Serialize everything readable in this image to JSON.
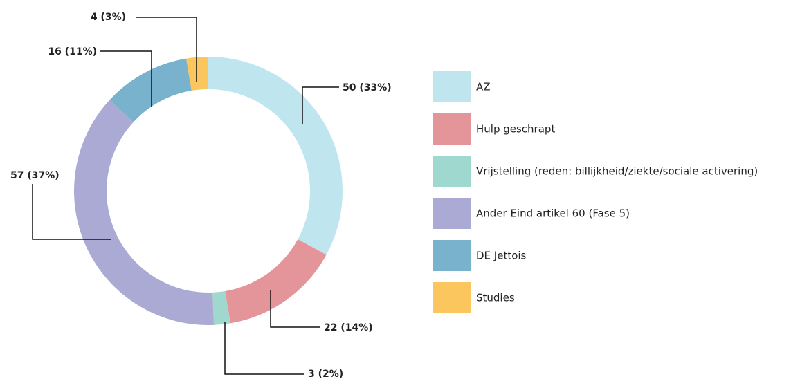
{
  "chart_data": {
    "type": "pie",
    "categories": [
      "AZ",
      "Hulp geschrapt",
      "Vrijstelling (reden: billijkheid/ziekte/sociale activering)",
      "Ander Eind artikel 60 (Fase 5)",
      "DE Jettois",
      "Studies"
    ],
    "values": [
      50,
      22,
      3,
      57,
      16,
      4
    ],
    "value_labels": [
      "50 (33%)",
      "22 (14%)",
      "3 (2%)",
      "57 (37%)",
      "16 (11%)",
      "4 (3%)"
    ],
    "colors": [
      "#bfe5ef",
      "#e4959a",
      "#9fd8cf",
      "#aaaad4",
      "#79b2cc",
      "#fcc65f"
    ],
    "legend": "right"
  }
}
